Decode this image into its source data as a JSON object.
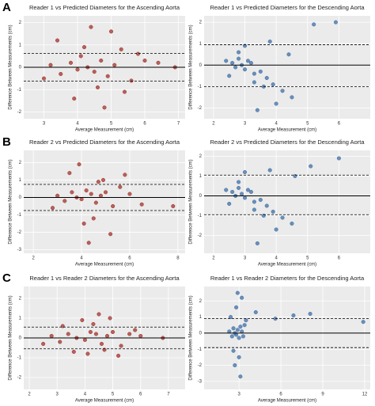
{
  "panel_labels": [
    "A",
    "B",
    "C"
  ],
  "chart_data": [
    {
      "type": "scatter",
      "title": "Reader 1 vs Predicted Diameters for the Ascending Aorta",
      "x_label": "Average Measurement (cm)",
      "y_label": "Difference Between Measurements (cm)",
      "color": "#a3322c",
      "xlim": [
        2.4,
        7.2
      ],
      "xticks": [
        3,
        4,
        5,
        6,
        7
      ],
      "ylim": [
        -2.3,
        2.3
      ],
      "yticks": [
        -2,
        -1,
        0,
        1,
        2
      ],
      "hlines": [
        {
          "value": 0,
          "style": "solid"
        },
        {
          "value": 0.62,
          "style": "dashed"
        },
        {
          "value": -0.62,
          "style": "dashed"
        }
      ],
      "x": [
        3.2,
        3.5,
        3.8,
        4.0,
        4.1,
        4.3,
        4.5,
        4.7,
        4.9,
        5.1,
        5.3,
        5.6,
        6.0,
        6.4,
        3.4,
        3.9,
        4.2,
        4.6,
        5.0,
        5.4,
        3.0,
        4.4,
        4.8,
        5.8,
        6.9
      ],
      "y": [
        0.1,
        -0.3,
        0.2,
        -0.1,
        0.5,
        0.0,
        -0.2,
        0.3,
        -0.4,
        0.1,
        0.8,
        -0.6,
        0.3,
        0.2,
        1.2,
        -1.4,
        0.9,
        -0.9,
        1.6,
        -1.1,
        -0.5,
        1.8,
        -1.8,
        0.6,
        0.0
      ]
    },
    {
      "type": "scatter",
      "title": "Reader 1 vs Predicted Diameters for the Descending Aorta",
      "x_label": "Average Measurement (cm)",
      "y_label": "Difference Between Measurements (cm)",
      "color": "#3f6fa6",
      "xlim": [
        1.7,
        7.0
      ],
      "xticks": [
        2,
        3,
        4,
        5,
        6
      ],
      "ylim": [
        -2.5,
        2.3
      ],
      "yticks": [
        -2,
        -1,
        0,
        1,
        2
      ],
      "hlines": [
        {
          "value": 0,
          "style": "solid"
        },
        {
          "value": 0.95,
          "style": "dashed"
        },
        {
          "value": -1.0,
          "style": "dashed"
        }
      ],
      "x": [
        2.4,
        2.6,
        2.7,
        2.8,
        2.9,
        3.0,
        3.1,
        3.2,
        3.3,
        3.5,
        3.7,
        3.9,
        4.2,
        4.5,
        2.8,
        3.0,
        3.3,
        3.6,
        3.8,
        4.0,
        2.5,
        4.4,
        5.2,
        5.9,
        3.4
      ],
      "y": [
        0.2,
        0.1,
        -0.1,
        0.3,
        0.0,
        -0.2,
        0.2,
        0.1,
        -0.4,
        -0.3,
        -0.6,
        -0.9,
        -1.2,
        -1.5,
        0.6,
        0.9,
        -0.8,
        -1.0,
        1.1,
        -1.8,
        -0.5,
        0.5,
        1.9,
        2.0,
        -2.1
      ]
    },
    {
      "type": "scatter",
      "title": "Reader 2 vs Predicted Diameters for the Ascending Aorta",
      "x_label": "Average Measurement (cm)",
      "y_label": "Difference Between Measurements (cm)",
      "color": "#a3322c",
      "xlim": [
        1.6,
        8.3
      ],
      "xticks": [
        2,
        4,
        6,
        8
      ],
      "ylim": [
        -3.2,
        2.7
      ],
      "yticks": [
        -3,
        -2,
        -1,
        0,
        1,
        2
      ],
      "hlines": [
        {
          "value": 0,
          "style": "solid"
        },
        {
          "value": 0.75,
          "style": "dashed"
        },
        {
          "value": -0.75,
          "style": "dashed"
        }
      ],
      "x": [
        3.0,
        3.3,
        3.6,
        3.8,
        4.0,
        4.2,
        4.4,
        4.6,
        4.8,
        5.0,
        5.3,
        5.6,
        6.0,
        6.5,
        3.5,
        3.9,
        4.1,
        4.5,
        4.9,
        5.2,
        2.8,
        4.3,
        4.7,
        5.8,
        7.8
      ],
      "y": [
        0.1,
        -0.2,
        0.3,
        0.0,
        -0.1,
        0.4,
        0.2,
        -0.3,
        0.1,
        0.3,
        -0.5,
        0.6,
        0.2,
        -0.4,
        1.4,
        1.9,
        -1.5,
        -1.2,
        1.0,
        -2.1,
        -0.6,
        -2.6,
        0.9,
        1.3,
        -0.5
      ]
    },
    {
      "type": "scatter",
      "title": "Reader 2 vs Predicted Diameters for the Descending Aorta",
      "x_label": "Average Measurement (cm)",
      "y_label": "Difference Between Measurements (cm)",
      "color": "#3f6fa6",
      "xlim": [
        1.7,
        7.0
      ],
      "xticks": [
        2,
        3,
        4,
        5,
        6
      ],
      "ylim": [
        -2.9,
        2.3
      ],
      "yticks": [
        -2,
        -1,
        0,
        1,
        2
      ],
      "hlines": [
        {
          "value": 0,
          "style": "solid"
        },
        {
          "value": 1.05,
          "style": "dashed"
        },
        {
          "value": -0.95,
          "style": "dashed"
        }
      ],
      "x": [
        2.4,
        2.6,
        2.7,
        2.8,
        2.9,
        3.0,
        3.1,
        3.2,
        3.3,
        3.5,
        3.7,
        3.9,
        4.2,
        4.5,
        2.8,
        3.0,
        3.3,
        3.6,
        3.8,
        4.0,
        2.5,
        4.6,
        5.1,
        6.0,
        3.4
      ],
      "y": [
        0.3,
        0.2,
        0.0,
        0.4,
        0.1,
        -0.1,
        0.3,
        0.2,
        -0.3,
        -0.2,
        -0.5,
        -0.8,
        -1.1,
        -1.4,
        0.7,
        1.2,
        -0.7,
        -1.0,
        1.3,
        -1.7,
        -0.4,
        1.0,
        1.5,
        1.9,
        -2.4
      ]
    },
    {
      "type": "scatter",
      "title": "Reader 1 vs Reader 2 Diameters for the Ascending Aorta",
      "x_label": "Average Measurement (cm)",
      "y_label": "Difference Between Measurements (cm)",
      "color": "#a3322c",
      "xlim": [
        1.8,
        7.6
      ],
      "xticks": [
        2,
        3,
        4,
        5,
        6,
        7
      ],
      "ylim": [
        -2.6,
        2.6
      ],
      "yticks": [
        -2,
        -1,
        0,
        1,
        2
      ],
      "hlines": [
        {
          "value": 0,
          "style": "solid"
        },
        {
          "value": 0.55,
          "style": "dashed"
        },
        {
          "value": -0.55,
          "style": "dashed"
        }
      ],
      "x": [
        2.8,
        3.1,
        3.4,
        3.7,
        4.0,
        4.2,
        4.4,
        4.6,
        4.8,
        5.0,
        5.3,
        5.6,
        6.0,
        3.2,
        3.6,
        3.9,
        4.1,
        4.5,
        4.9,
        5.2,
        2.5,
        4.3,
        4.7,
        5.8,
        6.8
      ],
      "y": [
        0.1,
        -0.2,
        0.2,
        0.0,
        -0.1,
        0.3,
        0.2,
        -0.3,
        0.1,
        0.3,
        -0.4,
        0.2,
        0.1,
        0.6,
        -0.7,
        0.9,
        -0.8,
        1.2,
        1.0,
        -0.9,
        -0.3,
        0.7,
        -0.6,
        0.4,
        0.0
      ]
    },
    {
      "type": "scatter",
      "title": "Reader 1 vs Reader 2 Diameters for the Descending Aorta",
      "x_label": "Average Measurement (cm)",
      "y_label": "Difference Between Measurements (cm)",
      "color": "#3f6fa6",
      "xlim": [
        0.5,
        12.4
      ],
      "xticks": [
        3,
        6,
        9,
        12
      ],
      "ylim": [
        -3.5,
        2.9
      ],
      "yticks": [
        -3,
        -2,
        -1,
        0,
        1,
        2
      ],
      "hlines": [
        {
          "value": 0,
          "style": "solid"
        },
        {
          "value": 0.9,
          "style": "dashed"
        },
        {
          "value": -0.9,
          "style": "dashed"
        }
      ],
      "x": [
        2.3,
        2.5,
        2.6,
        2.7,
        2.8,
        2.9,
        3.0,
        3.1,
        3.2,
        3.3,
        3.4,
        2.4,
        2.6,
        2.8,
        3.0,
        3.2,
        2.7,
        2.9,
        3.1,
        3.5,
        4.2,
        5.6,
        6.9,
        8.1,
        11.9
      ],
      "y": [
        0.1,
        -0.2,
        0.3,
        0.0,
        -0.1,
        0.2,
        -0.3,
        0.4,
        0.1,
        -0.2,
        0.5,
        1.0,
        -1.1,
        1.6,
        -1.5,
        2.2,
        -2.0,
        2.5,
        -2.7,
        0.8,
        1.3,
        0.9,
        1.1,
        1.2,
        0.7
      ]
    }
  ]
}
